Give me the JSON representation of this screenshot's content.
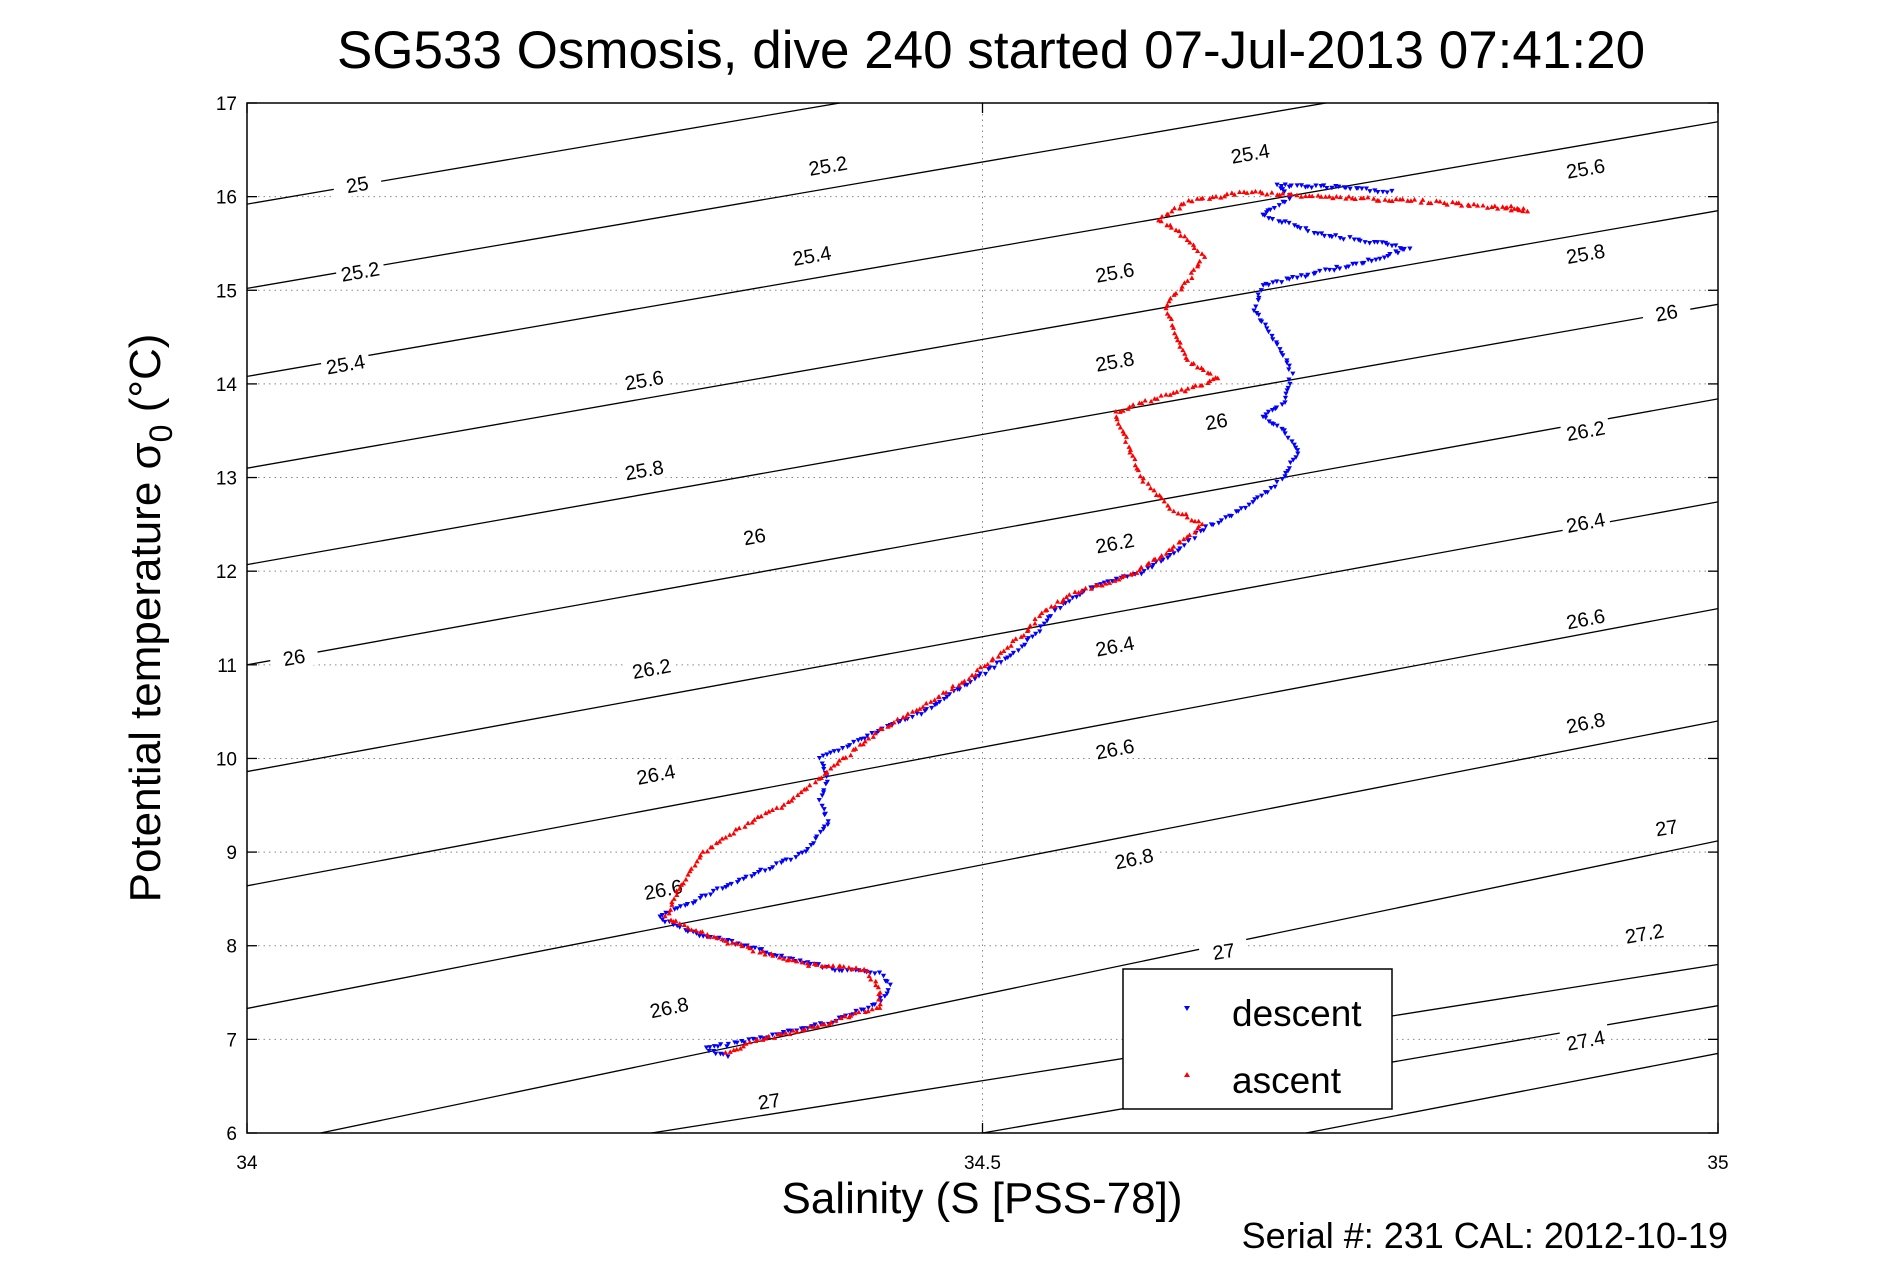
{
  "chart_data": {
    "type": "scatter",
    "title": "SG533 Osmosis, dive 240 started 07-Jul-2013 07:41:20",
    "xlabel": "Salinity (S [PSS-78])",
    "ylabel_main": "Potential temperature ",
    "ylabel_sigma": "σ",
    "ylabel_sub": "0",
    "ylabel_unit": " (°C)",
    "xlim": [
      34,
      35
    ],
    "ylim": [
      6,
      17
    ],
    "xticks": [
      "34",
      "34.5",
      "35"
    ],
    "yticks": [
      "6",
      "7",
      "8",
      "9",
      "10",
      "11",
      "12",
      "13",
      "14",
      "15",
      "16",
      "17"
    ],
    "grid": "dotted",
    "footer": "Serial #: 231  CAL: 2012-10-19",
    "legend": {
      "position": "bottom-center",
      "entries": [
        "descent",
        "ascent"
      ]
    },
    "colors": {
      "descent": "#0000ff",
      "ascent": "#ff0000",
      "contour": "#000000"
    },
    "contours": [
      {
        "level": 25.0,
        "label": "25",
        "points": [
          [
            34.0,
            15.92
          ],
          [
            35.0,
            18.6
          ]
        ]
      },
      {
        "level": 25.2,
        "label": "25.2",
        "points": [
          [
            34.0,
            15.02
          ],
          [
            35.0,
            17.72
          ]
        ]
      },
      {
        "level": 25.4,
        "label": "25.4",
        "points": [
          [
            34.0,
            14.08
          ],
          [
            35.0,
            16.8
          ]
        ]
      },
      {
        "level": 25.6,
        "label": "25.6",
        "points": [
          [
            34.0,
            13.1
          ],
          [
            35.0,
            15.85
          ]
        ]
      },
      {
        "level": 25.8,
        "label": "25.8",
        "points": [
          [
            34.0,
            12.07
          ],
          [
            35.0,
            14.85
          ]
        ]
      },
      {
        "level": 26.0,
        "label": "26",
        "points": [
          [
            34.0,
            11.0
          ],
          [
            35.0,
            13.84
          ]
        ]
      },
      {
        "level": 26.2,
        "label": "26.2",
        "points": [
          [
            34.0,
            9.86
          ],
          [
            35.0,
            12.74
          ]
        ]
      },
      {
        "level": 26.4,
        "label": "26.4",
        "points": [
          [
            34.0,
            8.64
          ],
          [
            35.0,
            11.6
          ]
        ]
      },
      {
        "level": 26.6,
        "label": "26.6",
        "points": [
          [
            34.0,
            7.33
          ],
          [
            35.0,
            10.4
          ]
        ]
      },
      {
        "level": 26.8,
        "label": "26.8",
        "points": [
          [
            34.05,
            6.0
          ],
          [
            35.0,
            9.12
          ]
        ]
      },
      {
        "level": 27.0,
        "label": "27",
        "points": [
          [
            34.275,
            6.0
          ],
          [
            35.0,
            7.8
          ]
        ]
      },
      {
        "level": 27.2,
        "label": "27.2",
        "points": [
          [
            34.5,
            6.0
          ],
          [
            35.0,
            7.36
          ]
        ]
      },
      {
        "level": 27.4,
        "label": "27.4",
        "points": [
          [
            34.72,
            6.0
          ],
          [
            35.0,
            6.85
          ]
        ]
      }
    ],
    "contour_labels": [
      {
        "text": "25",
        "x": 34.075,
        "y": 16.13
      },
      {
        "text": "25.2",
        "x": 34.395,
        "y": 16.33
      },
      {
        "text": "25.4",
        "x": 34.682,
        "y": 16.46
      },
      {
        "text": "25.6",
        "x": 34.91,
        "y": 16.3
      },
      {
        "text": "25.2",
        "x": 34.077,
        "y": 15.2
      },
      {
        "text": "25.4",
        "x": 34.384,
        "y": 15.37
      },
      {
        "text": "25.6",
        "x": 34.59,
        "y": 15.19
      },
      {
        "text": "25.8",
        "x": 34.91,
        "y": 15.39
      },
      {
        "text": "25.4",
        "x": 34.067,
        "y": 14.21
      },
      {
        "text": "25.6",
        "x": 34.27,
        "y": 14.04
      },
      {
        "text": "25.8",
        "x": 34.59,
        "y": 14.24
      },
      {
        "text": "26",
        "x": 34.965,
        "y": 14.76
      },
      {
        "text": "25.8",
        "x": 34.27,
        "y": 13.08
      },
      {
        "text": "26",
        "x": 34.659,
        "y": 13.6
      },
      {
        "text": "26.2",
        "x": 34.91,
        "y": 13.5
      },
      {
        "text": "26",
        "x": 34.345,
        "y": 12.37
      },
      {
        "text": "26.2",
        "x": 34.59,
        "y": 12.3
      },
      {
        "text": "26.4",
        "x": 34.91,
        "y": 12.52
      },
      {
        "text": "26",
        "x": 34.032,
        "y": 11.08
      },
      {
        "text": "26.2",
        "x": 34.275,
        "y": 10.96
      },
      {
        "text": "26.4",
        "x": 34.59,
        "y": 11.2
      },
      {
        "text": "26.6",
        "x": 34.91,
        "y": 11.49
      },
      {
        "text": "26.4",
        "x": 34.278,
        "y": 9.83
      },
      {
        "text": "26.6",
        "x": 34.59,
        "y": 10.1
      },
      {
        "text": "26.8",
        "x": 34.91,
        "y": 10.38
      },
      {
        "text": "26.6",
        "x": 34.283,
        "y": 8.6
      },
      {
        "text": "26.8",
        "x": 34.603,
        "y": 8.93
      },
      {
        "text": "27",
        "x": 34.965,
        "y": 9.26
      },
      {
        "text": "26.8",
        "x": 34.287,
        "y": 7.34
      },
      {
        "text": "27",
        "x": 34.664,
        "y": 7.94
      },
      {
        "text": "27.2",
        "x": 34.95,
        "y": 8.13
      },
      {
        "text": "27",
        "x": 34.355,
        "y": 6.34
      },
      {
        "text": "27.4",
        "x": 34.91,
        "y": 6.99
      }
    ],
    "series": [
      {
        "name": "descent",
        "marker": "triangle-down",
        "path": [
          [
            34.327,
            6.82
          ],
          [
            34.312,
            6.9
          ],
          [
            34.36,
            7.05
          ],
          [
            34.4,
            7.2
          ],
          [
            34.43,
            7.4
          ],
          [
            34.438,
            7.57
          ],
          [
            34.43,
            7.7
          ],
          [
            34.4,
            7.75
          ],
          [
            34.36,
            7.9
          ],
          [
            34.34,
            8.0
          ],
          [
            34.3,
            8.15
          ],
          [
            34.28,
            8.3
          ],
          [
            34.3,
            8.45
          ],
          [
            34.32,
            8.6
          ],
          [
            34.35,
            8.8
          ],
          [
            34.38,
            9.0
          ],
          [
            34.395,
            9.3
          ],
          [
            34.39,
            9.55
          ],
          [
            34.395,
            9.8
          ],
          [
            34.39,
            10.0
          ],
          [
            34.41,
            10.15
          ],
          [
            34.43,
            10.3
          ],
          [
            34.46,
            10.5
          ],
          [
            34.49,
            10.8
          ],
          [
            34.52,
            11.1
          ],
          [
            34.54,
            11.4
          ],
          [
            34.55,
            11.6
          ],
          [
            34.57,
            11.8
          ],
          [
            34.61,
            12.0
          ],
          [
            34.63,
            12.2
          ],
          [
            34.65,
            12.45
          ],
          [
            34.67,
            12.6
          ],
          [
            34.69,
            12.8
          ],
          [
            34.705,
            13.0
          ],
          [
            34.715,
            13.3
          ],
          [
            34.705,
            13.5
          ],
          [
            34.69,
            13.65
          ],
          [
            34.705,
            13.8
          ],
          [
            34.71,
            14.1
          ],
          [
            34.705,
            14.3
          ],
          [
            34.695,
            14.55
          ],
          [
            34.685,
            14.8
          ],
          [
            34.69,
            15.05
          ],
          [
            34.73,
            15.2
          ],
          [
            34.76,
            15.3
          ],
          [
            34.79,
            15.45
          ],
          [
            34.73,
            15.6
          ],
          [
            34.69,
            15.8
          ],
          [
            34.71,
            16.0
          ],
          [
            34.7,
            16.12
          ],
          [
            34.74,
            16.1
          ],
          [
            34.78,
            16.05
          ]
        ]
      },
      {
        "name": "ascent",
        "marker": "triangle-up",
        "path": [
          [
            34.325,
            6.85
          ],
          [
            34.35,
            7.0
          ],
          [
            34.39,
            7.15
          ],
          [
            34.43,
            7.35
          ],
          [
            34.43,
            7.55
          ],
          [
            34.42,
            7.75
          ],
          [
            34.38,
            7.8
          ],
          [
            34.345,
            7.95
          ],
          [
            34.315,
            8.1
          ],
          [
            34.285,
            8.3
          ],
          [
            34.29,
            8.5
          ],
          [
            34.3,
            8.75
          ],
          [
            34.31,
            9.0
          ],
          [
            34.34,
            9.3
          ],
          [
            34.37,
            9.55
          ],
          [
            34.39,
            9.8
          ],
          [
            34.41,
            10.05
          ],
          [
            34.43,
            10.3
          ],
          [
            34.46,
            10.55
          ],
          [
            34.49,
            10.85
          ],
          [
            34.51,
            11.1
          ],
          [
            34.53,
            11.35
          ],
          [
            34.54,
            11.55
          ],
          [
            34.56,
            11.75
          ],
          [
            34.6,
            11.95
          ],
          [
            34.62,
            12.15
          ],
          [
            34.65,
            12.5
          ],
          [
            34.63,
            12.65
          ],
          [
            34.61,
            12.95
          ],
          [
            34.6,
            13.3
          ],
          [
            34.59,
            13.7
          ],
          [
            34.63,
            13.9
          ],
          [
            34.66,
            14.05
          ],
          [
            34.64,
            14.25
          ],
          [
            34.63,
            14.55
          ],
          [
            34.625,
            14.85
          ],
          [
            34.64,
            15.1
          ],
          [
            34.65,
            15.35
          ],
          [
            34.64,
            15.55
          ],
          [
            34.62,
            15.75
          ],
          [
            34.64,
            15.95
          ],
          [
            34.68,
            16.05
          ],
          [
            34.73,
            16.0
          ],
          [
            34.8,
            15.95
          ],
          [
            34.84,
            15.9
          ],
          [
            34.87,
            15.85
          ],
          [
            34.855,
            15.9
          ]
        ]
      }
    ]
  }
}
